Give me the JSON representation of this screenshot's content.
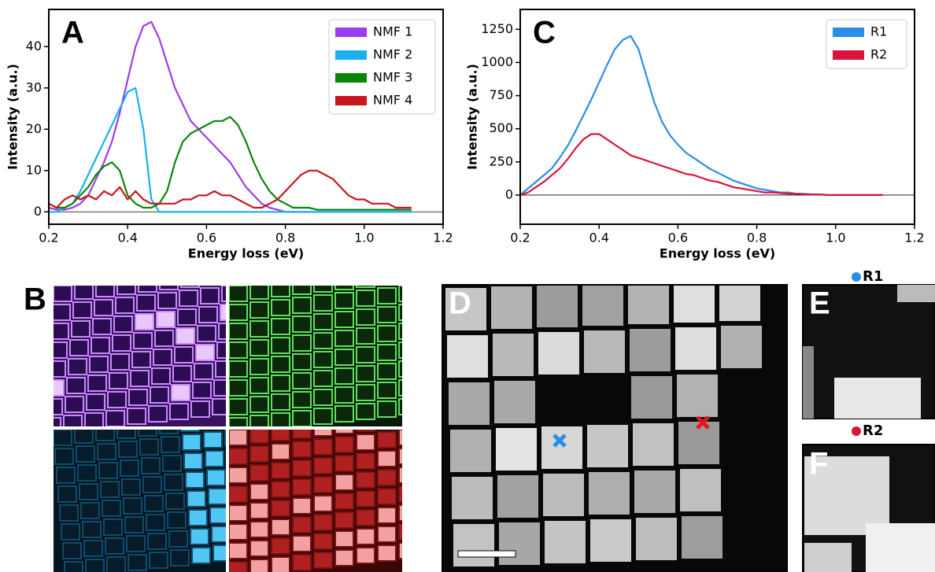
{
  "chart_data": [
    {
      "type": "line",
      "panel": "A",
      "xlabel": "Energy loss (eV)",
      "ylabel": "Intensity (a.u.)",
      "x": [
        0.2,
        0.22,
        0.24,
        0.26,
        0.28,
        0.3,
        0.32,
        0.34,
        0.36,
        0.38,
        0.4,
        0.42,
        0.44,
        0.46,
        0.48,
        0.5,
        0.52,
        0.54,
        0.56,
        0.58,
        0.6,
        0.62,
        0.64,
        0.66,
        0.68,
        0.7,
        0.72,
        0.74,
        0.76,
        0.78,
        0.8,
        0.82,
        0.84,
        0.86,
        0.88,
        0.9,
        0.92,
        0.94,
        0.96,
        0.98,
        1.0,
        1.02,
        1.04,
        1.06,
        1.08,
        1.1,
        1.12
      ],
      "series": [
        {
          "name": "NMF 1",
          "color": "#9b3cf0",
          "values": [
            1,
            0.5,
            0.5,
            1,
            2,
            4,
            8,
            12,
            17,
            24,
            32,
            40,
            45,
            46,
            42,
            36,
            30,
            26,
            22,
            20,
            18,
            16,
            14,
            12,
            9,
            6,
            4,
            2,
            1,
            0.5,
            0,
            0,
            0,
            0,
            0,
            0,
            0,
            0,
            0,
            0,
            0,
            0,
            0,
            0,
            0,
            0,
            0
          ]
        },
        {
          "name": "NMF 2",
          "color": "#1ab0ef",
          "values": [
            0,
            0,
            1,
            2,
            5,
            9,
            13,
            17,
            21,
            25,
            29,
            30,
            20,
            3,
            0,
            0,
            0,
            0,
            0,
            0,
            0,
            0,
            0,
            0,
            0,
            0,
            0,
            0,
            0,
            0,
            0,
            0,
            0,
            0,
            0,
            0,
            0,
            0,
            0,
            0,
            0,
            0,
            0,
            0,
            0,
            0,
            0
          ]
        },
        {
          "name": "NMF 3",
          "color": "#0a850a",
          "values": [
            2,
            1,
            1,
            2,
            4,
            6,
            9,
            11,
            12,
            10,
            4,
            2,
            1,
            1,
            2,
            5,
            12,
            17,
            19,
            20,
            21,
            22,
            22,
            23,
            21,
            17,
            12,
            8,
            5,
            3,
            2,
            1,
            1,
            1,
            0.5,
            0.5,
            0.5,
            0.5,
            0.5,
            0.5,
            0.5,
            0.5,
            0.5,
            0.5,
            0.5,
            0.5,
            0.5
          ]
        },
        {
          "name": "NMF 4",
          "color": "#c8161d",
          "values": [
            2,
            1,
            3,
            4,
            3,
            4,
            3,
            5,
            4,
            6,
            3,
            5,
            3,
            2,
            2,
            2,
            2,
            3,
            3,
            4,
            4,
            5,
            4,
            4,
            3,
            2,
            1,
            1,
            2,
            3,
            5,
            7,
            9,
            10,
            10,
            9,
            8,
            6,
            4,
            3,
            3,
            2,
            2,
            2,
            1,
            1,
            1
          ]
        }
      ],
      "xlim": [
        0.2,
        1.2
      ],
      "xticks": [
        0.2,
        0.4,
        0.6,
        0.8,
        {
          "value": 1,
          "label": "1.0"
        },
        1.2
      ],
      "ylim": [
        -3,
        49
      ],
      "yticks": [
        0,
        10,
        20,
        30,
        40
      ],
      "zero_line": true,
      "legend": "upper right"
    },
    {
      "type": "line",
      "panel": "C",
      "xlabel": "Energy loss (eV)",
      "ylabel": "Intensity (a.u.)",
      "x": [
        0.2,
        0.22,
        0.24,
        0.26,
        0.28,
        0.3,
        0.32,
        0.34,
        0.36,
        0.38,
        0.4,
        0.42,
        0.44,
        0.46,
        0.48,
        0.5,
        0.52,
        0.54,
        0.56,
        0.58,
        0.6,
        0.62,
        0.64,
        0.66,
        0.68,
        0.7,
        0.72,
        0.74,
        0.76,
        0.78,
        0.8,
        0.82,
        0.84,
        0.86,
        0.88,
        0.9,
        0.92,
        0.94,
        0.96,
        0.98,
        1.0,
        1.02,
        1.04,
        1.06,
        1.08,
        1.1,
        1.12
      ],
      "series": [
        {
          "name": "R1",
          "color": "#2a8de8",
          "values": [
            0,
            50,
            100,
            150,
            200,
            280,
            370,
            480,
            600,
            720,
            850,
            980,
            1100,
            1170,
            1200,
            1100,
            900,
            700,
            550,
            450,
            380,
            320,
            280,
            240,
            200,
            170,
            140,
            110,
            90,
            70,
            50,
            40,
            30,
            20,
            20,
            10,
            10,
            5,
            5,
            0,
            0,
            0,
            0,
            0,
            0,
            0,
            0
          ]
        },
        {
          "name": "R2",
          "color": "#dc143c",
          "values": [
            0,
            20,
            60,
            100,
            150,
            200,
            270,
            350,
            420,
            460,
            460,
            420,
            380,
            340,
            300,
            280,
            260,
            240,
            220,
            200,
            180,
            160,
            150,
            130,
            110,
            100,
            80,
            60,
            50,
            40,
            30,
            20,
            20,
            15,
            10,
            10,
            5,
            5,
            5,
            0,
            0,
            0,
            0,
            0,
            0,
            0,
            0
          ]
        }
      ],
      "xlim": [
        0.2,
        1.2
      ],
      "xticks": [
        0.2,
        0.4,
        0.6,
        0.8,
        {
          "value": 1,
          "label": "1.0"
        },
        1.2
      ],
      "ylim": [
        -220,
        1400
      ],
      "yticks": [
        0,
        250,
        500,
        750,
        1000,
        1250
      ],
      "zero_line": true,
      "legend": "upper right"
    }
  ],
  "panels": {
    "b": "B",
    "d": "D",
    "e": "E",
    "f": "F",
    "e_label": "R1",
    "f_label": "R2"
  }
}
